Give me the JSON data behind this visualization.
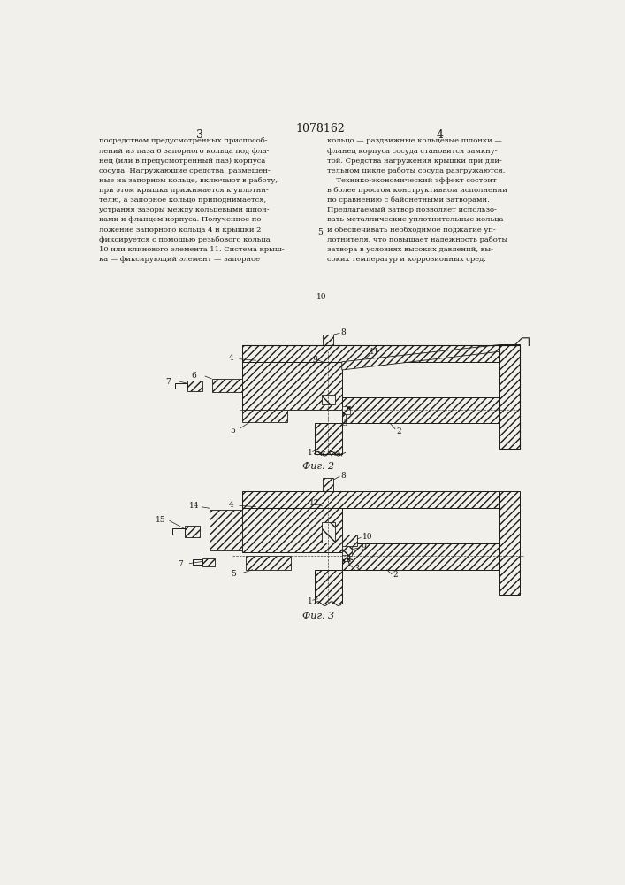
{
  "page_width": 7.07,
  "page_height": 10.0,
  "bg_color": "#f2f0eb",
  "patent_number": "1078162",
  "col_left": "3",
  "col_right": "4",
  "text_left": "посредством предусмотренных приспособ-\nлений из паза 6 запорного кольца под фла-\nнец (или в предусмотренный паз) корпуса\nсосуда. Нагружающие средства, размещен-\nные на запорном кольце, включают в работу,\nпри этом крышка прижимается к уплотни-\nтелю, а запорное кольцо приподнимается,\nустраняя зазоры между кольцевыми шпон-\nками и фланцем корпуса. Полученное по-\nложение запорного кольца 4 и крышки 2\nфиксируется с помощью резьбового кольца\n10 или клинового элемента 11. Система крыш-\nка — фиксирующий элемент — запорное",
  "text_right": "кольцо — раздвижные кольцевые шпонки —\nфланец корпуса сосуда становится замкну-\nтой. Средства нагружения крышки при дли-\nтельном цикле работы сосуда разгружаются.\n    Технико-экономический эффект состоит\nв более простом конструктивном исполнении\nпо сравнению с байонетными затворами.\nПредлагаемый затвор позволяет использо-\nвать металлические уплотнительные кольца\nи обеспечивать необходимое поджатие уп-\nлотнителя, что повышает надежность работы\nзатвора в условиях высоких давлений, вы-\nсоких температур и коррозионных сред.",
  "fig2_caption": "Фиг. 2",
  "fig3_caption": "Фиг. 3",
  "lc": "#1a1a1a",
  "hatch_lw": 0.4
}
